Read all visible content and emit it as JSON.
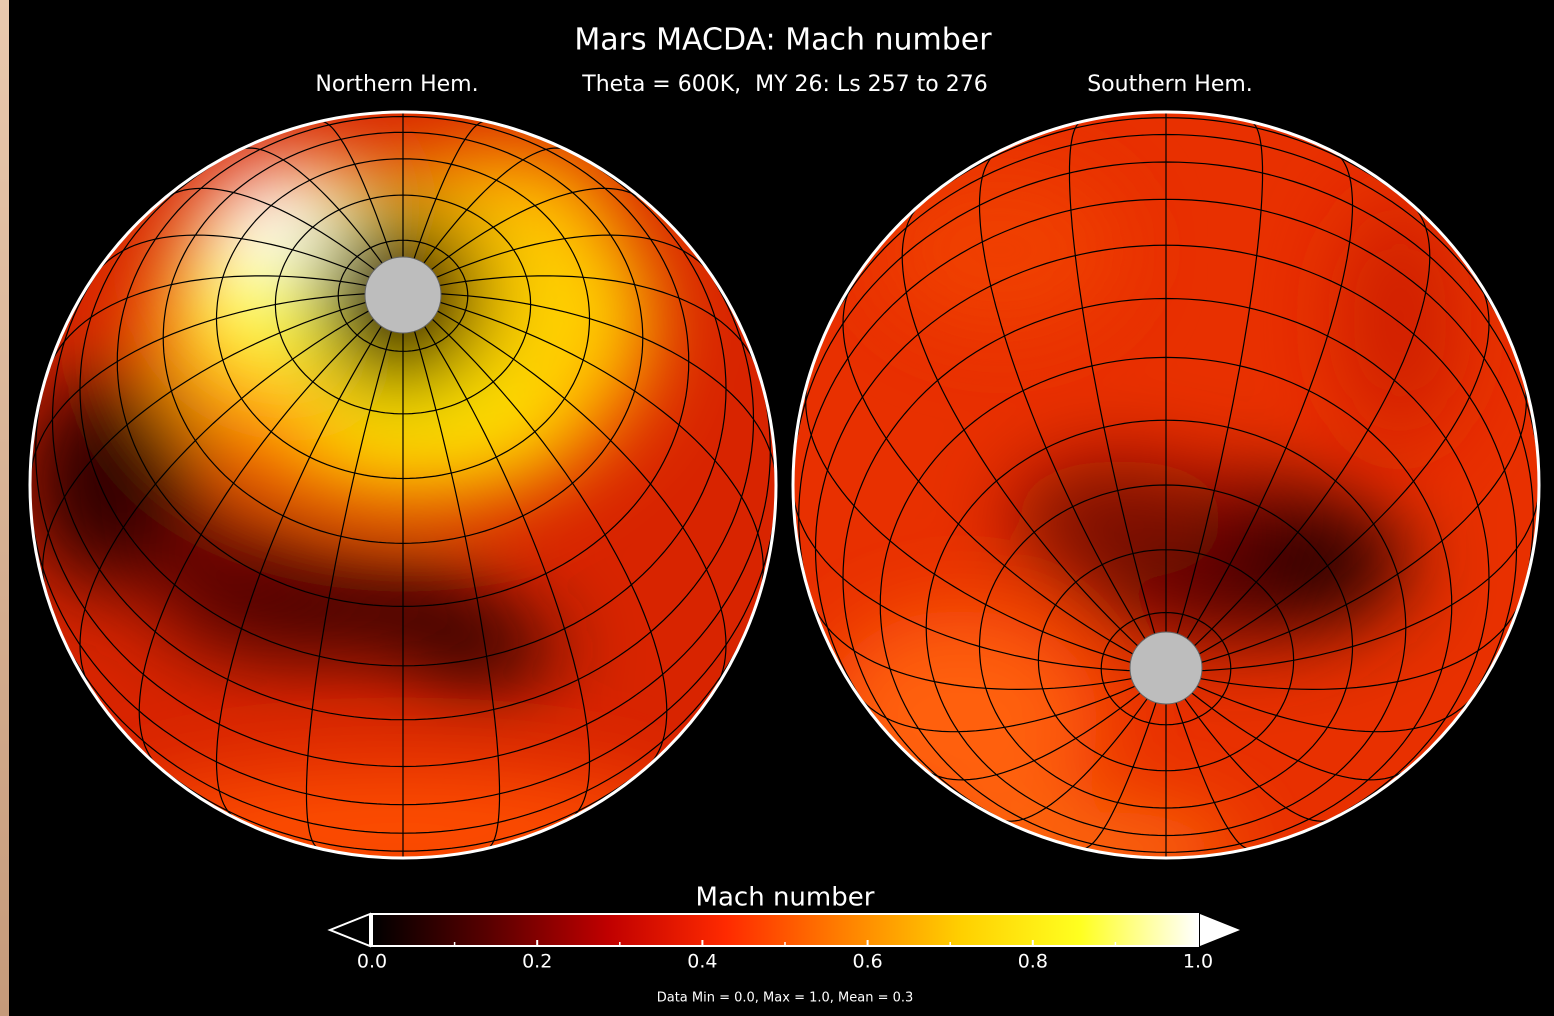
{
  "header": {
    "title": "Mars MACDA: Mach number",
    "left_label": "Northern Hem.",
    "subtitle": "Theta = 600K,  MY 26: Ls 257 to 276",
    "right_label": "Southern Hem."
  },
  "colorbar": {
    "label": "Mach number",
    "lim": [
      0,
      1
    ],
    "ticks": [
      {
        "value": 0,
        "label": "0.0"
      },
      {
        "value": 0.2,
        "label": "0.2"
      },
      {
        "value": 0.4,
        "label": "0.4"
      },
      {
        "value": 0.6,
        "label": "0.6"
      },
      {
        "value": 0.8,
        "label": "0.8"
      },
      {
        "value": 1,
        "label": "1.0"
      }
    ],
    "minor_ticks": [
      0.1,
      0.3,
      0.5,
      0.7,
      0.9
    ],
    "colors": [
      "#000000",
      "#5a0000",
      "#c00000",
      "#ff2a00",
      "#ff8000",
      "#ffd000",
      "#ffff20",
      "#ffffff"
    ],
    "stats": "Data Min = 0.0, Max = 1.0, Mean = 0.3"
  }
}
